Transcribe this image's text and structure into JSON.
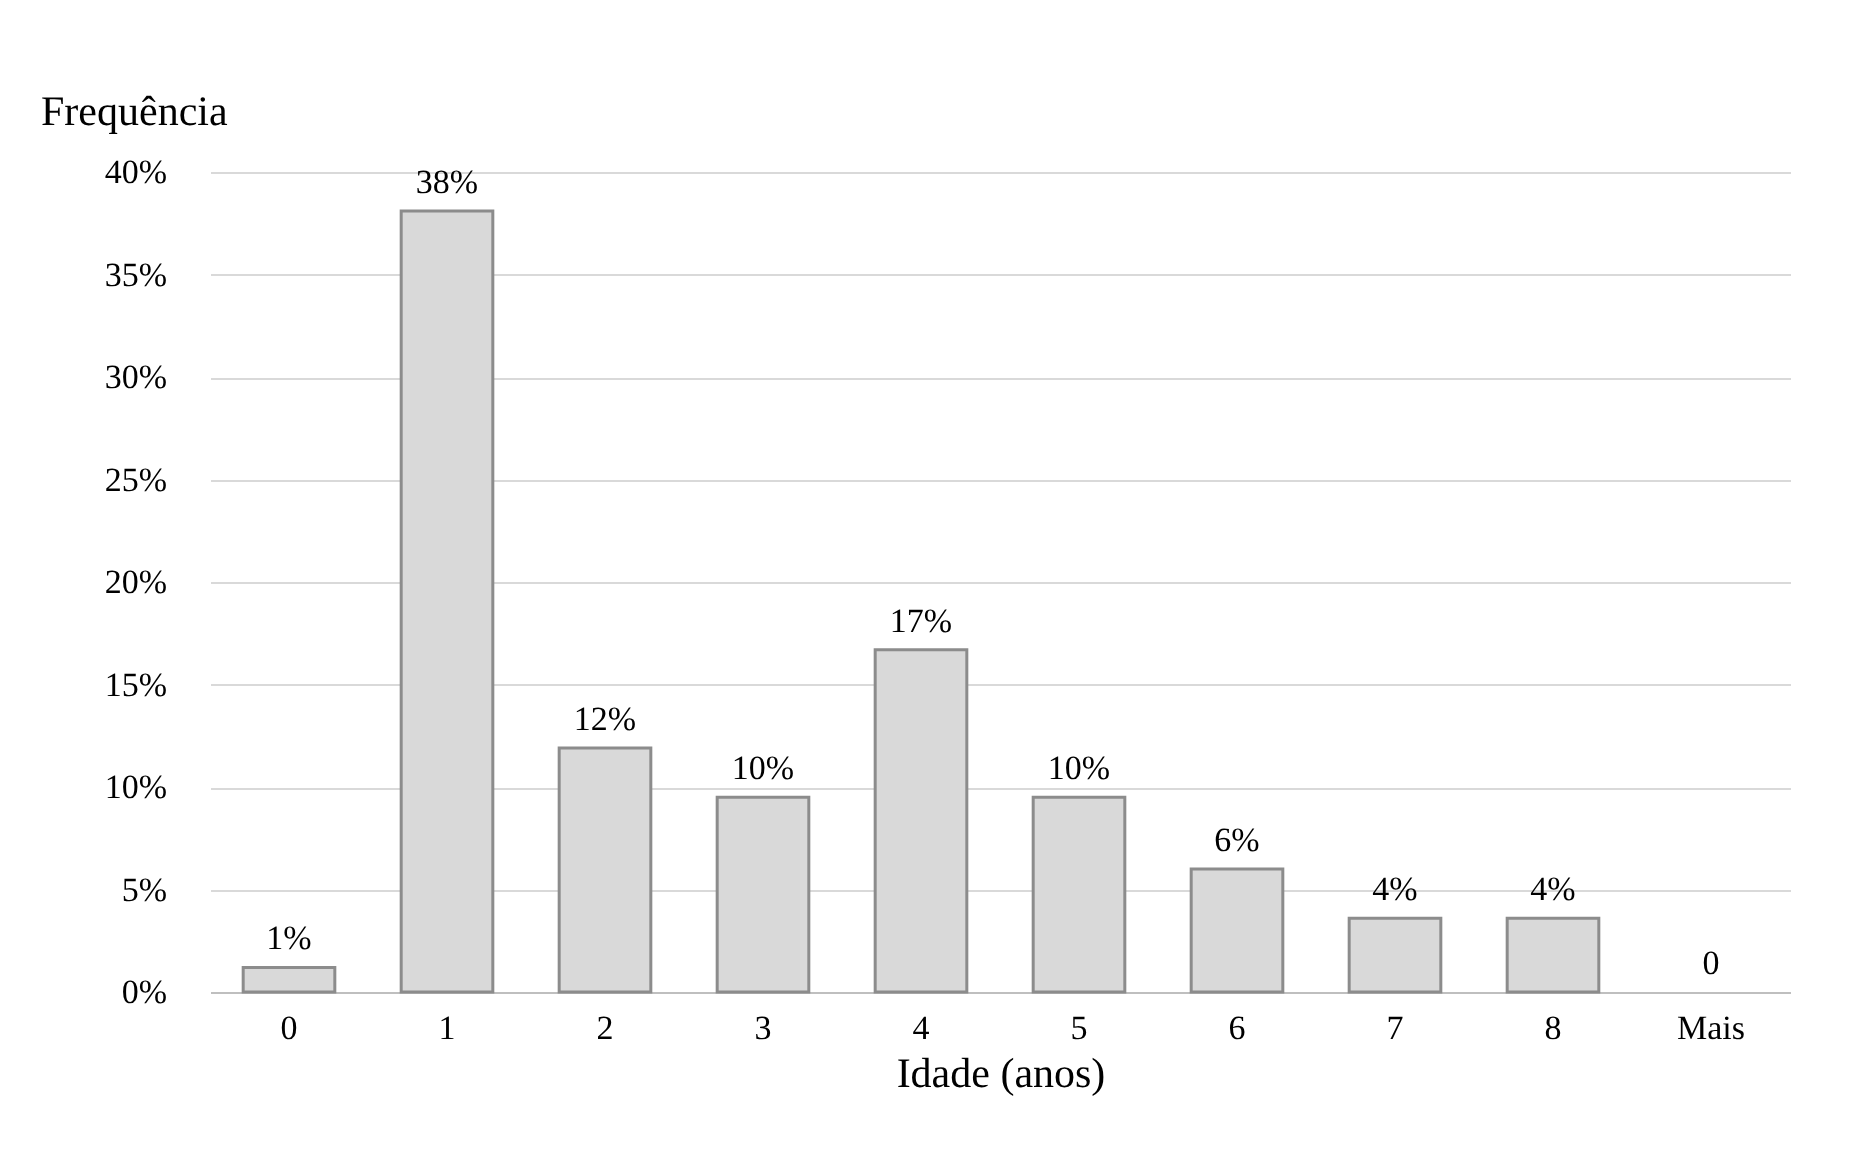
{
  "chart_data": {
    "type": "bar",
    "xlabel": "Idade (anos)",
    "ylabel": "Frequência",
    "categories": [
      "0",
      "1",
      "2",
      "3",
      "4",
      "5",
      "6",
      "7",
      "8",
      "Mais"
    ],
    "values": [
      1.2,
      38.1,
      11.9,
      9.5,
      16.7,
      9.5,
      6.0,
      3.6,
      3.6,
      0
    ],
    "value_labels": [
      "1%",
      "38%",
      "12%",
      "10%",
      "17%",
      "10%",
      "6%",
      "4%",
      "4%",
      "0"
    ],
    "color": "#d9d9d9",
    "ylim": [
      0,
      40
    ],
    "yticks": [
      {
        "value": 0,
        "label": "0%"
      },
      {
        "value": 5,
        "label": "5%"
      },
      {
        "value": 10,
        "label": "10%"
      },
      {
        "value": 15,
        "label": "15%"
      },
      {
        "value": 20,
        "label": "20%"
      },
      {
        "value": 25,
        "label": "25%"
      },
      {
        "value": 30,
        "label": "30%"
      },
      {
        "value": 35,
        "label": "35%"
      },
      {
        "value": 40,
        "label": "40%"
      }
    ],
    "grid": "y"
  }
}
